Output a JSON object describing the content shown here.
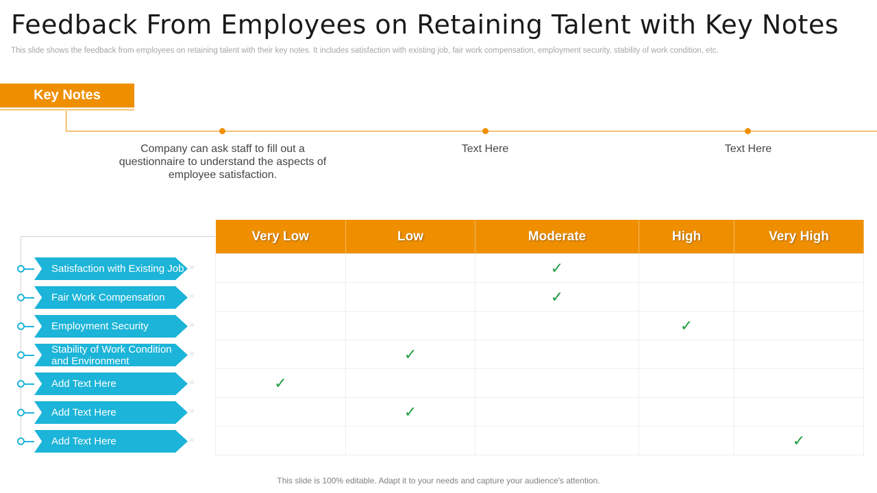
{
  "header": {
    "title": "Feedback From Employees on Retaining Talent with Key Notes",
    "subtitle": "This slide shows the feedback from employees on retaining talent with their key notes. It includes satisfaction with existing job, fair work compensation, employment security, stability of work condition, etc."
  },
  "key_notes": {
    "label": "Key Notes",
    "notes": [
      "Company can ask staff to fill out a questionnaire to understand the aspects of employee satisfaction.",
      "Text Here",
      "Text Here"
    ]
  },
  "table": {
    "columns": [
      "Very Low",
      "Low",
      "Moderate",
      "High",
      "Very High"
    ],
    "rows": [
      {
        "label": "Satisfaction with Existing Job",
        "rating_index": 2
      },
      {
        "label": "Fair Work Compensation",
        "rating_index": 2
      },
      {
        "label": "Employment Security",
        "rating_index": 3
      },
      {
        "label": "Stability of Work Condition and Environment",
        "rating_index": 1
      },
      {
        "label": "Add Text Here",
        "rating_index": 0
      },
      {
        "label": "Add Text Here",
        "rating_index": 1
      },
      {
        "label": "Add Text Here",
        "rating_index": 4
      }
    ],
    "check_glyph": "✓",
    "chevron_glyph": "»"
  },
  "colors": {
    "accent": "#ef8f00",
    "row_label_bg": "#1cb4d8",
    "check": "#1e9b3c"
  },
  "footer": {
    "text": "This slide is 100% editable. Adapt it to your needs and capture your audience's attention."
  }
}
